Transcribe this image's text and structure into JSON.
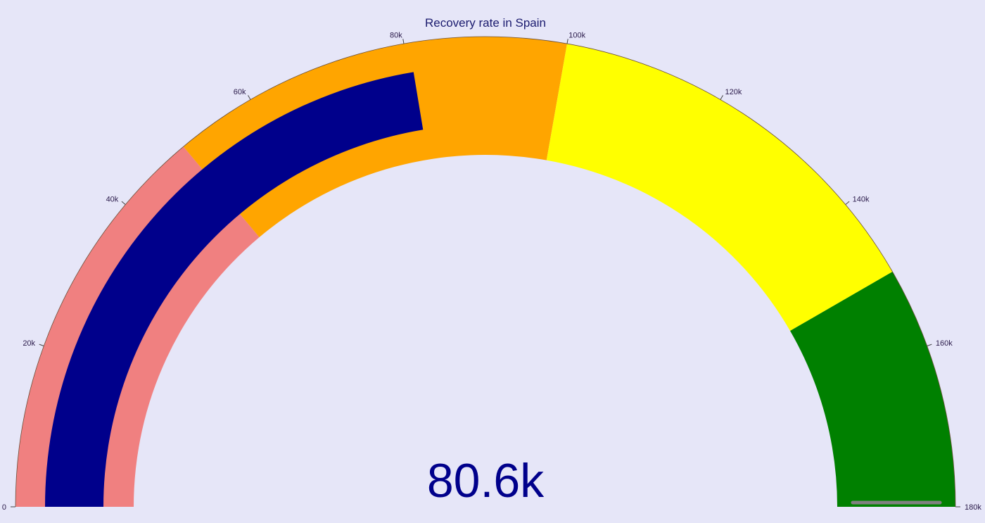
{
  "chart_data": {
    "type": "gauge",
    "title": "Recovery rate in Spain",
    "value": 80600,
    "value_label": "80.6k",
    "range": [
      0,
      180000
    ],
    "ticks": [
      {
        "value": 0,
        "label": "0"
      },
      {
        "value": 20000,
        "label": "20k"
      },
      {
        "value": 40000,
        "label": "40k"
      },
      {
        "value": 60000,
        "label": "60k"
      },
      {
        "value": 80000,
        "label": "80k"
      },
      {
        "value": 100000,
        "label": "100k"
      },
      {
        "value": 120000,
        "label": "120k"
      },
      {
        "value": 140000,
        "label": "140k"
      },
      {
        "value": 160000,
        "label": "160k"
      },
      {
        "value": 180000,
        "label": "180k"
      }
    ],
    "steps": [
      {
        "range": [
          0,
          50000
        ],
        "color": "#f08080"
      },
      {
        "range": [
          50000,
          100000
        ],
        "color": "#ffa500"
      },
      {
        "range": [
          100000,
          150000
        ],
        "color": "#ffff00"
      },
      {
        "range": [
          150000,
          180000
        ],
        "color": "#008000"
      }
    ],
    "bar_color": "#00008b",
    "threshold": {
      "value": 180000,
      "color": "#808080"
    },
    "background": "#e6e6fa"
  }
}
